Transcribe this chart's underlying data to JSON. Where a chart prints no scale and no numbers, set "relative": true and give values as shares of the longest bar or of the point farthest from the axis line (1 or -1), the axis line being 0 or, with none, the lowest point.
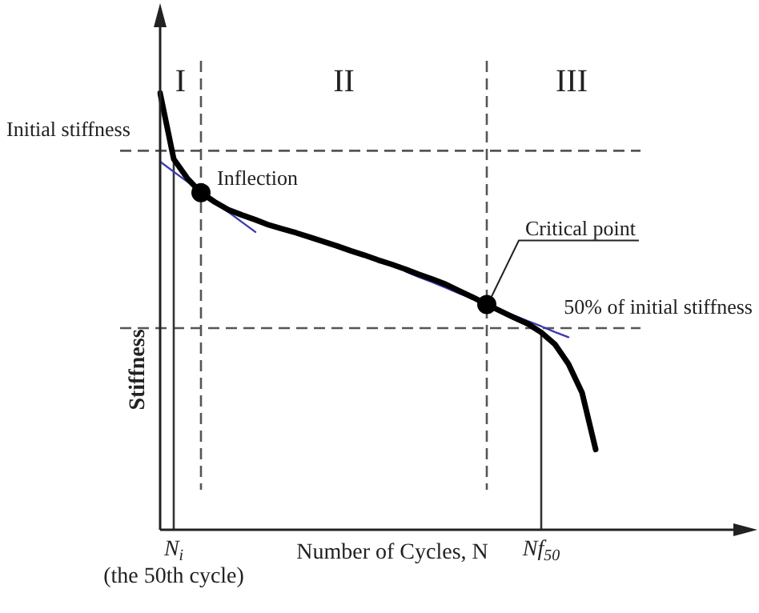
{
  "chart_data": {
    "type": "line",
    "relative": true,
    "xlabel": "Number of Cycles, N",
    "ylabel": "Stiffness",
    "categories": [
      null,
      "N$_{i}$\n(the 50th cycle)",
      null,
      null,
      null,
      null,
      null,
      null,
      null,
      null,
      null,
      null,
      null,
      null,
      null,
      null,
      null,
      null,
      null,
      null,
      null,
      null,
      null,
      null,
      null,
      null,
      null,
      null,
      "Nf$_{50}$",
      null,
      null,
      null,
      null,
      null,
      null,
      null,
      null,
      null,
      null,
      null,
      null
    ],
    "tick_labels": "x",
    "legend": false,
    "marker": "none",
    "line_style": "solid",
    "series": [
      {
        "color": "#000000",
        "values": [
          1.0,
          0.849,
          0.805,
          0.772,
          0.751,
          0.733,
          0.721,
          0.71,
          0.698,
          0.689,
          0.68,
          0.67,
          0.66,
          0.65,
          0.639,
          0.629,
          0.618,
          0.608,
          0.597,
          0.585,
          0.574,
          0.562,
          0.547,
          0.532,
          0.516,
          0.501,
          0.486,
          0.472,
          0.452,
          0.425,
          0.38,
          0.314,
          0.184,
          null,
          null,
          null,
          null,
          null,
          null,
          null,
          null
        ]
      },
      {
        "color": "#3b3bb0",
        "values": [
          0.843,
          0.82,
          0.797,
          0.774,
          0.751,
          0.728,
          0.705,
          0.682,
          null,
          null,
          null,
          null,
          null,
          null,
          null,
          null,
          null,
          null,
          null,
          null,
          null,
          null,
          null,
          null,
          null,
          null,
          null,
          null,
          null,
          null,
          null,
          null,
          null,
          null,
          null,
          null,
          null,
          null,
          null,
          null,
          null
        ]
      },
      {
        "color": "#3b3bb0",
        "values": [
          null,
          null,
          null,
          null,
          null,
          null,
          null,
          null,
          null,
          null,
          null,
          null,
          null,
          null,
          null,
          null,
          null,
          null,
          0.592,
          0.579,
          0.567,
          0.554,
          0.541,
          0.529,
          0.516,
          0.503,
          0.491,
          0.478,
          0.466,
          0.453,
          0.441,
          null,
          null,
          null,
          null,
          null,
          null,
          null,
          null,
          null,
          null
        ]
      },
      {
        "type": "scatter",
        "marker": "circle",
        "line_style": "dashed",
        "color": "#000000",
        "values": [
          null,
          null,
          null,
          0.772,
          null,
          null,
          null,
          null,
          null,
          null,
          null,
          null,
          null,
          null,
          null,
          null,
          null,
          null,
          null,
          null,
          null,
          null,
          null,
          null,
          0.516,
          null,
          null,
          null,
          null,
          null,
          null,
          null,
          null,
          null,
          null,
          null,
          null,
          null,
          null,
          null,
          null
        ]
      }
    ],
    "ref_lines": [
      {
        "axis": "y",
        "value": 0.868,
        "label": "Initial stiffness",
        "line_style": "dashed",
        "color": "#555555"
      },
      {
        "axis": "y",
        "value": 0.462,
        "label": "50% of initial stiffness",
        "line_style": "dashed",
        "color": "#555555"
      },
      {
        "axis": "x",
        "value": "N$_{i}$\n(the 50th cycle)",
        "line_style": "solid",
        "color": "#333333"
      },
      {
        "axis": "x",
        "value": "Nf$_{50}$",
        "line_style": "solid",
        "color": "#333333"
      }
    ],
    "annotations": [
      "I",
      "II",
      "III",
      "Inflection",
      "Critical point"
    ]
  }
}
